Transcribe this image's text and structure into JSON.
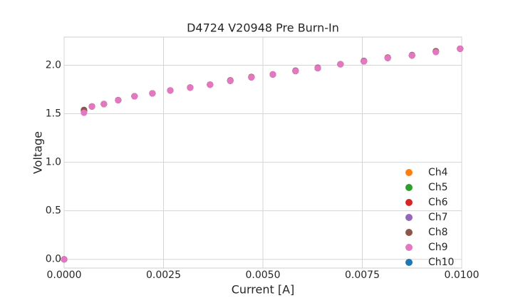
{
  "chart_data": {
    "type": "scatter",
    "title": "D4724 V20948 Pre Burn-In",
    "x_label": "Current [A]",
    "y_label": "Voltage",
    "x": [
      0,
      0.0005,
      0.0007,
      0.001,
      0.00136,
      0.00177,
      0.00222,
      0.00267,
      0.00317,
      0.00367,
      0.00418,
      0.00471,
      0.00525,
      0.00582,
      0.00638,
      0.00695,
      0.00754,
      0.00814,
      0.00875,
      0.00935,
      0.00996
    ],
    "series": [
      {
        "name": "Ch4",
        "color": "#ff7f0e",
        "values": [
          0,
          1.53,
          1.575,
          1.6,
          1.64,
          1.68,
          1.71,
          1.74,
          1.77,
          1.8,
          1.84,
          1.875,
          1.905,
          1.94,
          1.97,
          2.01,
          2.04,
          2.075,
          2.1,
          2.14,
          2.17
        ]
      },
      {
        "name": "Ch5",
        "color": "#2ca02c",
        "values": [
          0,
          1.53,
          1.575,
          1.6,
          1.64,
          1.68,
          1.71,
          1.74,
          1.77,
          1.8,
          1.84,
          1.875,
          1.905,
          1.94,
          1.97,
          2.01,
          2.04,
          2.075,
          2.1,
          2.14,
          2.17
        ]
      },
      {
        "name": "Ch6",
        "color": "#d62728",
        "values": [
          0,
          1.53,
          1.575,
          1.6,
          1.64,
          1.68,
          1.71,
          1.74,
          1.77,
          1.8,
          1.84,
          1.875,
          1.905,
          1.94,
          1.97,
          2.01,
          2.04,
          2.075,
          2.1,
          2.14,
          2.17
        ]
      },
      {
        "name": "Ch7",
        "color": "#9467bd",
        "values": [
          0,
          1.53,
          1.575,
          1.6,
          1.64,
          1.68,
          1.71,
          1.74,
          1.77,
          1.8,
          1.84,
          1.875,
          1.905,
          1.94,
          1.97,
          2.01,
          2.04,
          2.075,
          2.1,
          2.14,
          2.17
        ]
      },
      {
        "name": "Ch8",
        "color": "#8c564b",
        "values": [
          0,
          1.54,
          1.575,
          1.6,
          1.64,
          1.68,
          1.71,
          1.74,
          1.77,
          1.8,
          1.845,
          1.88,
          1.905,
          1.945,
          1.975,
          2.01,
          2.045,
          2.08,
          2.105,
          2.145,
          2.17
        ]
      },
      {
        "name": "Ch9",
        "color": "#e377c2",
        "values": [
          0,
          1.51,
          1.575,
          1.6,
          1.64,
          1.68,
          1.71,
          1.74,
          1.77,
          1.8,
          1.84,
          1.875,
          1.905,
          1.94,
          1.97,
          2.01,
          2.04,
          2.075,
          2.1,
          2.135,
          2.17
        ]
      },
      {
        "name": "Ch10",
        "color": "#1f77b4",
        "values": [
          0,
          1.53,
          1.575,
          1.6,
          1.64,
          1.68,
          1.71,
          1.74,
          1.77,
          1.8,
          1.84,
          1.875,
          1.905,
          1.94,
          1.97,
          2.01,
          2.04,
          2.075,
          2.1,
          2.14,
          2.17
        ]
      }
    ],
    "xlim": [
      0,
      0.01
    ],
    "ylim": [
      -0.09,
      2.29
    ],
    "xticks": [
      {
        "value": 0,
        "label": "0.0000"
      },
      {
        "value": 0.0025,
        "label": "0.0025"
      },
      {
        "value": 0.005,
        "label": "0.0050"
      },
      {
        "value": 0.0075,
        "label": "0.0075"
      },
      {
        "value": 0.01,
        "label": "0.0100"
      }
    ],
    "yticks": [
      {
        "value": 0,
        "label": "0.0"
      },
      {
        "value": 0.5,
        "label": "0.5"
      },
      {
        "value": 1,
        "label": "1.0"
      },
      {
        "value": 1.5,
        "label": "1.5"
      },
      {
        "value": 2,
        "label": "2.0"
      }
    ],
    "grid": true,
    "legend": "lower right"
  }
}
